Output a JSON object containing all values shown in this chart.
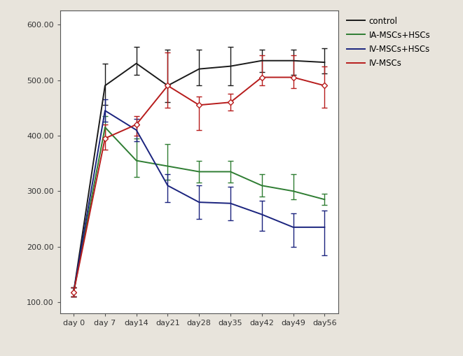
{
  "x_labels": [
    "day 0",
    "day 7",
    "day14",
    "day21",
    "day28",
    "day35",
    "day42",
    "day49",
    "day56"
  ],
  "x_values": [
    0,
    7,
    14,
    21,
    28,
    35,
    42,
    49,
    56
  ],
  "series": {
    "control": {
      "color": "#1a1a1a",
      "values": [
        118,
        490,
        530,
        490,
        520,
        525,
        535,
        535,
        532
      ],
      "yerr_low": [
        8,
        35,
        20,
        30,
        30,
        35,
        20,
        25,
        20
      ],
      "yerr_high": [
        8,
        40,
        30,
        65,
        35,
        35,
        20,
        20,
        25
      ]
    },
    "IA-MSCs+HSCs": {
      "color": "#2e7d32",
      "values": [
        118,
        415,
        355,
        345,
        335,
        335,
        310,
        300,
        285
      ],
      "yerr_low": [
        8,
        20,
        30,
        25,
        20,
        20,
        20,
        15,
        10
      ],
      "yerr_high": [
        8,
        20,
        40,
        40,
        20,
        20,
        20,
        30,
        10
      ]
    },
    "IV-MSCs+HSCs": {
      "color": "#1a237e",
      "values": [
        118,
        445,
        410,
        310,
        280,
        278,
        258,
        235,
        235
      ],
      "yerr_low": [
        8,
        20,
        20,
        30,
        30,
        30,
        30,
        35,
        50
      ],
      "yerr_high": [
        8,
        20,
        20,
        20,
        30,
        30,
        25,
        25,
        30
      ]
    },
    "IV-MSCs": {
      "color": "#b71c1c",
      "values": [
        118,
        395,
        420,
        490,
        455,
        460,
        505,
        505,
        490
      ],
      "yerr_low": [
        8,
        20,
        20,
        40,
        45,
        15,
        15,
        20,
        40
      ],
      "yerr_high": [
        8,
        25,
        15,
        60,
        15,
        15,
        40,
        40,
        35
      ]
    }
  },
  "ylim": [
    80,
    625
  ],
  "yticks": [
    100.0,
    200.0,
    300.0,
    400.0,
    500.0,
    600.0
  ],
  "figure_bg": "#e8e4dc",
  "plot_bg": "#ffffff",
  "legend_order": [
    "control",
    "IA-MSCs+HSCs",
    "IV-MSCs+HSCs",
    "IV-MSCs"
  ]
}
